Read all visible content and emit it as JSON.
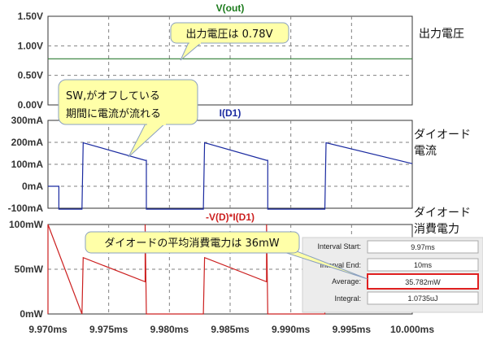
{
  "chart_data": [
    {
      "type": "line",
      "title": "V(out)",
      "title_color": "#1a7a1a",
      "line_color": "#2e7d32",
      "ylim": [
        0,
        1.5
      ],
      "yticks": [
        0,
        0.5,
        1.0,
        1.5
      ],
      "ytick_labels": [
        "0.00V",
        "0.50V",
        "1.00V",
        "1.50V"
      ],
      "x": [
        9.97,
        10.0
      ],
      "values": [
        0.78,
        0.78
      ],
      "side_label": "出力電圧",
      "callout": "出力電圧は 0.78V"
    },
    {
      "type": "line",
      "title": "I(D1)",
      "title_color": "#1a2aa0",
      "line_color": "#1a2aa0",
      "ylim": [
        -100,
        300
      ],
      "yticks": [
        -100,
        0,
        100,
        200,
        300
      ],
      "ytick_labels": [
        "-100mA",
        "0mA",
        "100mA",
        "200mA",
        "300mA"
      ],
      "x": [
        9.97,
        9.9708,
        9.9709,
        9.9709,
        9.9728,
        9.9729,
        9.978,
        9.9781,
        9.9781,
        9.9828,
        9.9829,
        9.988,
        9.9881,
        9.9881,
        9.9928,
        9.9929,
        10.0
      ],
      "values": [
        0,
        0,
        0,
        -125,
        -125,
        198,
        118,
        118,
        -125,
        -125,
        198,
        118,
        118,
        -125,
        -125,
        198,
        103
      ],
      "side_label_1": "ダイオード",
      "side_label_2": "電流",
      "callout_1": "SW,がオフしている",
      "callout_2": "期間に電流が流れる"
    },
    {
      "type": "line",
      "title": "-V(D)*I(D1)",
      "title_color": "#cc2020",
      "line_color": "#cc2020",
      "ylim": [
        0,
        100
      ],
      "yticks": [
        0,
        50,
        100
      ],
      "ytick_labels": [
        "0mW",
        "50mW",
        "100mW"
      ],
      "x": [
        9.97,
        9.97,
        9.9728,
        9.9729,
        9.978,
        9.978,
        9.9781,
        9.9828,
        9.9829,
        9.988,
        9.988,
        9.9881,
        9.9928,
        9.9929,
        10.0
      ],
      "values": [
        0,
        100,
        0,
        63,
        36,
        100,
        0,
        0,
        63,
        36,
        100,
        0,
        0,
        63,
        38
      ],
      "side_label_1": "ダイオード",
      "side_label_2": "消費電力",
      "callout": "ダイオードの平均消費電力は 36mW"
    }
  ],
  "x_axis": {
    "xlim": [
      9.97,
      10.0
    ],
    "ticks": [
      9.97,
      9.975,
      9.98,
      9.985,
      9.99,
      9.995,
      10.0
    ],
    "tick_labels": [
      "9.970ms",
      "9.975ms",
      "9.980ms",
      "9.985ms",
      "9.990ms",
      "9.995ms",
      "10.000ms"
    ]
  },
  "measure_panel": {
    "rows": [
      {
        "label": "Interval Start:",
        "value": "9.97ms"
      },
      {
        "label": "Interval End:",
        "value": "10ms"
      },
      {
        "label": "Average:",
        "value": "35.782mW"
      },
      {
        "label": "Integral:",
        "value": "1.0735uJ"
      }
    ],
    "highlight_color": "#e02020"
  }
}
